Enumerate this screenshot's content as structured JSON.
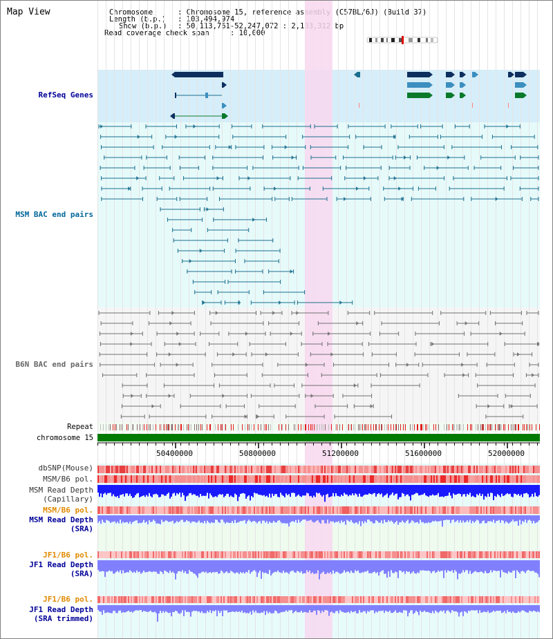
{
  "title": "Map View",
  "info": {
    "chromosome_key": "Chromosome",
    "chromosome_val": ": Chromosome 15, reference assembly (C57BL/6J) (Build 37)",
    "length_key": "Length (b.p.)",
    "length_val": ": 103,494,974",
    "show_key": "Show (b.p.)",
    "show_val": ": 50,113,761-52,247,072 : 2,133,312 bp",
    "coverage_key": "Read coverage check span",
    "coverage_val": ": 10,000"
  },
  "tracks": {
    "refseq": "RefSeq Genes",
    "msm_bac": "MSM BAC end pairs",
    "b6n_bac": "B6N BAC end pairs",
    "repeat": "Repeat",
    "chromosome": "chromosome 15",
    "dbsnp": "dbSNP(Mouse)",
    "msm_b6_pol_1": "MSM/B6 pol.",
    "msm_read_depth_cap_1": "MSM Read Depth",
    "msm_read_depth_cap_2": "(Capillary)",
    "msm_b6_pol_2": "MSM/B6 pol.",
    "msm_read_depth_sra_1": "MSM Read Depth",
    "msm_read_depth_sra_2": "(SRA)",
    "jf1_b6_pol_1": "JF1/B6 pol.",
    "jf1_read_depth_sra_1": "JF1 Read Depth",
    "jf1_read_depth_sra_2": "(SRA)",
    "jf1_b6_pol_2": "JF1/B6 pol.",
    "jf1_read_depth_trim_1": "JF1 Read Depth",
    "jf1_read_depth_trim_2": "(SRA trimmed)"
  },
  "axis_ticks": [
    "50400000",
    "50800000",
    "51200000",
    "51600000",
    "52000000"
  ],
  "colors": {
    "refseq_bg": "#d6eefa",
    "msm_bg": "#e6fafa",
    "b6n_bg": "#f5f5f5",
    "highlight": "#f8d8f0",
    "refseq_dark": "#0e2f5e",
    "refseq_mid": "#3c8fbf",
    "refseq_green": "#0a7a2a",
    "msm_line": "#1a6e8e",
    "b6n_line": "#707070",
    "chromosome_bar": "#007a00",
    "depth_blue": "#1a1aff",
    "depth_light": "#8080ff",
    "label_blue": "#000099",
    "label_teal": "#006699",
    "label_orange": "#e08a00"
  }
}
